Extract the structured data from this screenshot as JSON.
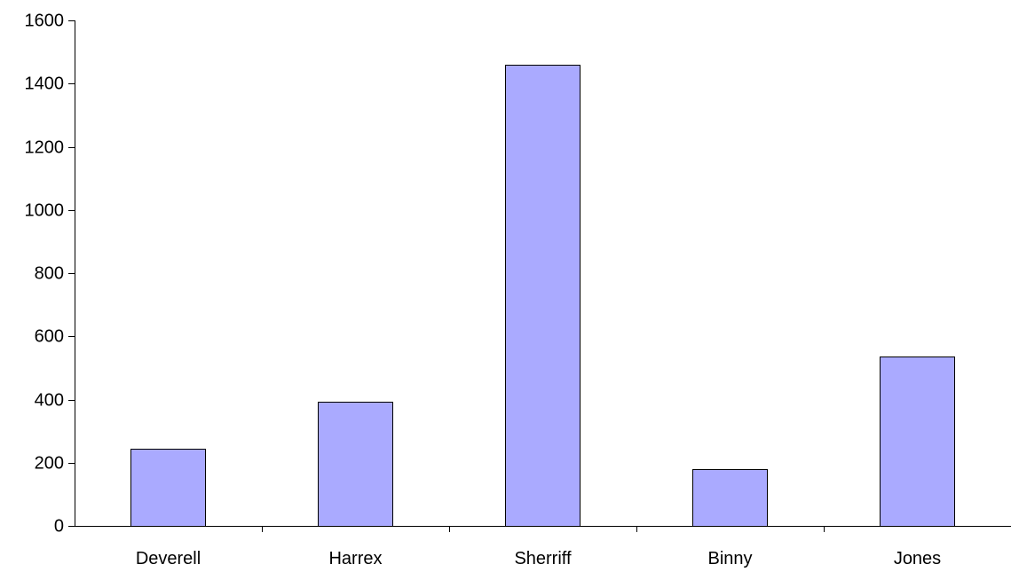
{
  "chart_data": {
    "type": "bar",
    "title": "",
    "xlabel": "",
    "ylabel": "",
    "categories": [
      "Deverell",
      "Harrex",
      "Sherriff",
      "Binny",
      "Jones"
    ],
    "values": [
      245,
      392,
      1460,
      180,
      535
    ],
    "ylim": [
      0,
      1600
    ],
    "yticks": [
      0,
      200,
      400,
      600,
      800,
      1000,
      1200,
      1400,
      1600
    ],
    "grid": false,
    "legend": "none",
    "bar_color": "#aaaaff",
    "bar_edge_color": "#000000"
  }
}
